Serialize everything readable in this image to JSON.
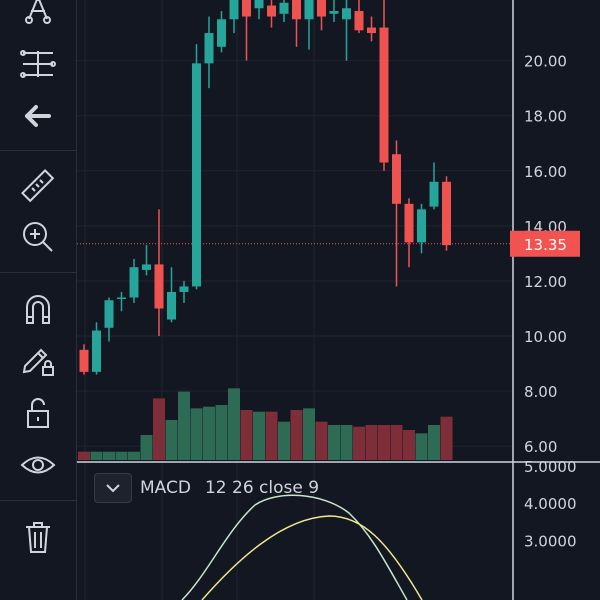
{
  "toolbar": {
    "tools": [
      {
        "icon": "pitchfork-icon"
      },
      {
        "icon": "sliders-icon"
      },
      {
        "icon": "arrow-left-icon"
      },
      {
        "icon": "ruler-icon"
      },
      {
        "icon": "zoom-in-icon"
      },
      {
        "icon": "magnet-icon"
      },
      {
        "icon": "pencil-lock-icon"
      },
      {
        "icon": "unlock-icon"
      },
      {
        "icon": "eye-icon"
      },
      {
        "icon": "trash-icon"
      }
    ]
  },
  "price_axis": {
    "labels": [
      "20.00",
      "18.00",
      "16.00",
      "14.00",
      "12.00",
      "10.00",
      "8.00",
      "6.00"
    ],
    "values": [
      20,
      18,
      16,
      14,
      12,
      10,
      8,
      6
    ],
    "current_price": "13.35",
    "current_value": 13.35
  },
  "macd": {
    "name": "MACD",
    "params": "12 26 close 9",
    "axis_labels": [
      "5.0000",
      "4.0000",
      "3.0000"
    ],
    "axis_values": [
      5,
      4,
      3
    ]
  },
  "colors": {
    "background": "#131722",
    "up": "#26a69a",
    "down": "#ef5350",
    "grid": "#1f2430",
    "text": "#d1d4dc",
    "price_label_bg": "#f05350"
  },
  "chart_data": {
    "type": "candlestick",
    "candles": [
      {
        "o": 9.5,
        "h": 9.7,
        "l": 8.6,
        "c": 8.7
      },
      {
        "o": 8.7,
        "h": 10.5,
        "l": 8.6,
        "c": 10.2
      },
      {
        "o": 10.3,
        "h": 11.4,
        "l": 9.8,
        "c": 11.3
      },
      {
        "o": 11.4,
        "h": 11.6,
        "l": 10.9,
        "c": 11.4
      },
      {
        "o": 11.4,
        "h": 12.8,
        "l": 11.2,
        "c": 12.5
      },
      {
        "o": 12.4,
        "h": 13.3,
        "l": 12.2,
        "c": 12.6
      },
      {
        "o": 12.6,
        "h": 14.6,
        "l": 10.0,
        "c": 11.0
      },
      {
        "o": 10.6,
        "h": 12.5,
        "l": 10.5,
        "c": 11.6
      },
      {
        "o": 11.6,
        "h": 12.0,
        "l": 11.2,
        "c": 11.8
      },
      {
        "o": 11.8,
        "h": 20.6,
        "l": 11.7,
        "c": 19.9
      },
      {
        "o": 19.9,
        "h": 21.6,
        "l": 19.0,
        "c": 21.0
      },
      {
        "o": 20.5,
        "h": 21.8,
        "l": 20.3,
        "c": 21.5
      },
      {
        "o": 21.5,
        "h": 22.5,
        "l": 21.0,
        "c": 22.4
      },
      {
        "o": 22.2,
        "h": 22.6,
        "l": 20.0,
        "c": 21.6
      },
      {
        "o": 21.9,
        "h": 22.4,
        "l": 21.5,
        "c": 22.2
      },
      {
        "o": 22.0,
        "h": 22.4,
        "l": 21.2,
        "c": 21.6
      },
      {
        "o": 21.7,
        "h": 22.4,
        "l": 21.4,
        "c": 22.1
      },
      {
        "o": 22.3,
        "h": 22.5,
        "l": 20.5,
        "c": 21.5
      },
      {
        "o": 21.5,
        "h": 22.3,
        "l": 20.4,
        "c": 22.2
      },
      {
        "o": 22.2,
        "h": 22.5,
        "l": 21.1,
        "c": 21.6
      },
      {
        "o": 21.7,
        "h": 22.3,
        "l": 21.4,
        "c": 21.8
      },
      {
        "o": 21.5,
        "h": 22.6,
        "l": 20.0,
        "c": 21.9
      },
      {
        "o": 21.8,
        "h": 22.4,
        "l": 21.0,
        "c": 21.1
      },
      {
        "o": 21.2,
        "h": 21.6,
        "l": 20.7,
        "c": 21.0
      },
      {
        "o": 21.2,
        "h": 22.2,
        "l": 16.0,
        "c": 16.3
      },
      {
        "o": 16.6,
        "h": 17.1,
        "l": 11.8,
        "c": 14.8
      },
      {
        "o": 14.8,
        "h": 15.0,
        "l": 12.5,
        "c": 13.4
      },
      {
        "o": 13.4,
        "h": 14.8,
        "l": 13.0,
        "c": 14.6
      },
      {
        "o": 14.7,
        "h": 16.3,
        "l": 14.6,
        "c": 15.6
      },
      {
        "o": 15.6,
        "h": 15.8,
        "l": 13.1,
        "c": 13.3
      }
    ],
    "volumes": [
      0.5,
      0.5,
      0.5,
      0.5,
      0.5,
      1.5,
      3.7,
      2.4,
      4.1,
      3.1,
      3.2,
      3.3,
      4.3,
      3.0,
      2.9,
      2.9,
      2.3,
      3.0,
      3.1,
      2.3,
      2.1,
      2.1,
      2.0,
      2.1,
      2.1,
      2.1,
      1.8,
      1.6,
      2.1,
      2.6
    ],
    "price_ylim": [
      5.5,
      22.2
    ],
    "macd_ylim": [
      1.4,
      5.0
    ]
  }
}
